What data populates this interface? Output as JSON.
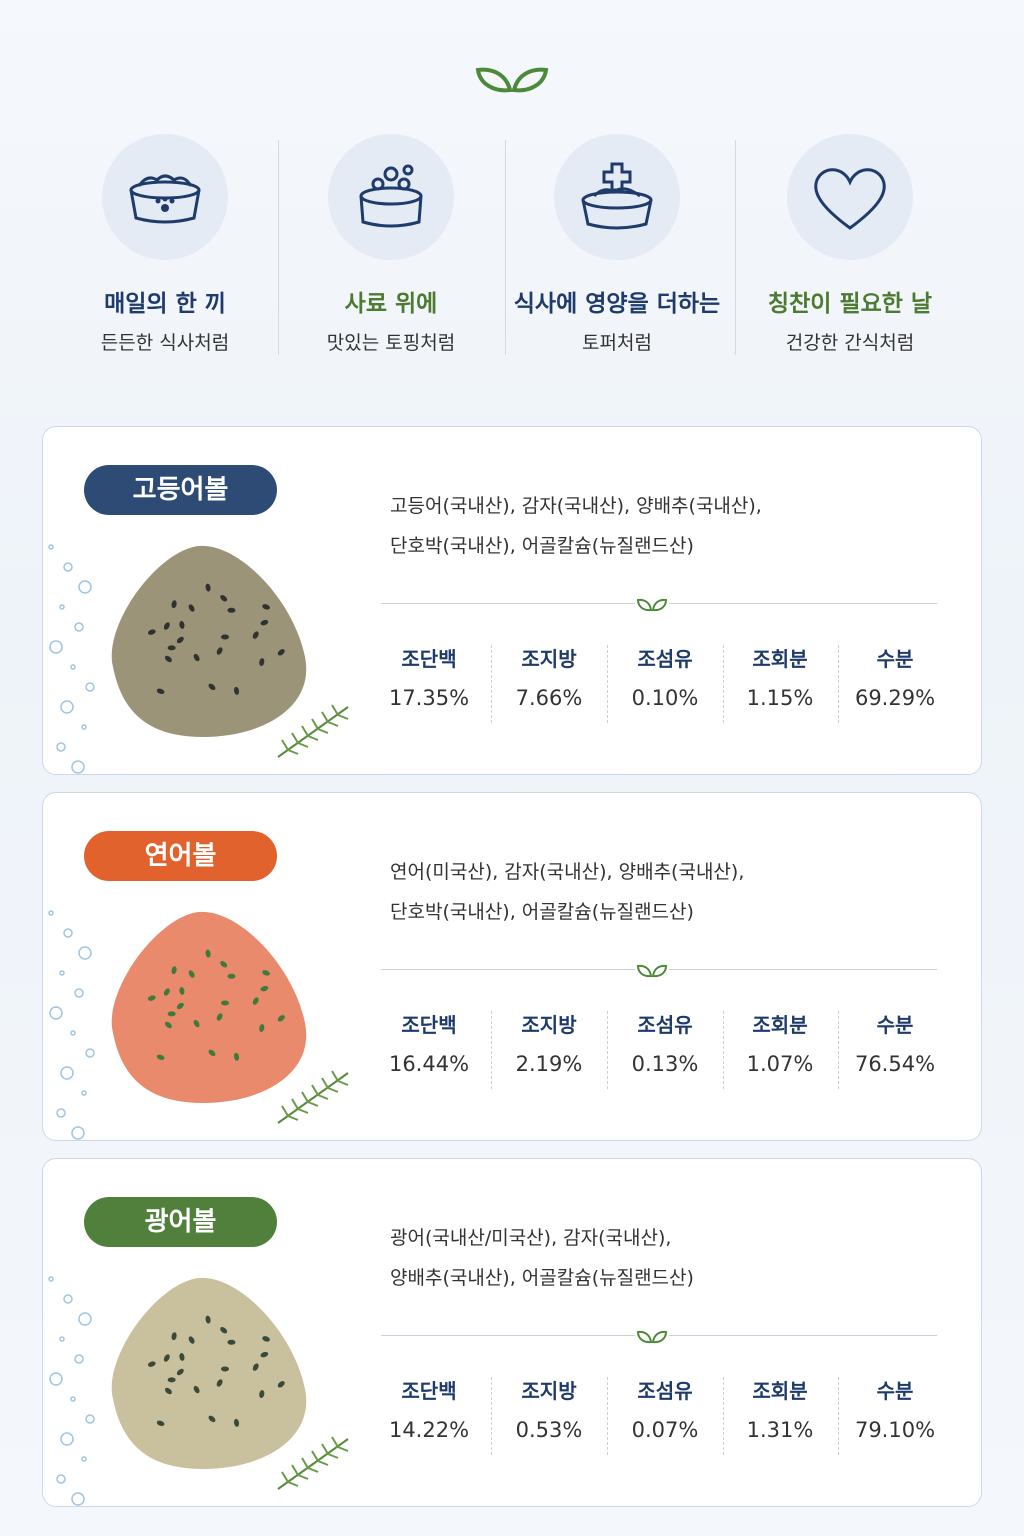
{
  "features": [
    {
      "title": "매일의 한 끼",
      "subtitle": "든든한 식사처럼"
    },
    {
      "title": "사료 위에",
      "subtitle": "맛있는 토핑처럼"
    },
    {
      "title": "식사에 영양을 더하는",
      "subtitle": "토퍼처럼"
    },
    {
      "title": "칭찬이 필요한 날",
      "subtitle": "건강한 간식처럼"
    }
  ],
  "products": [
    {
      "name": "고등어볼",
      "ingredients": [
        "고등어(국내산), 감자(국내산), 양배추(국내산),",
        "단호박(국내산), 어골칼슘(뉴질랜드산)"
      ],
      "nutrition": [
        {
          "label": "조단백",
          "value": "17.35%"
        },
        {
          "label": "조지방",
          "value": "7.66%"
        },
        {
          "label": "조섬유",
          "value": "0.10%"
        },
        {
          "label": "조회분",
          "value": "1.15%"
        },
        {
          "label": "수분",
          "value": "69.29%"
        }
      ]
    },
    {
      "name": "연어볼",
      "ingredients": [
        "연어(미국산), 감자(국내산), 양배추(국내산),",
        "단호박(국내산), 어골칼슘(뉴질랜드산)"
      ],
      "nutrition": [
        {
          "label": "조단백",
          "value": "16.44%"
        },
        {
          "label": "조지방",
          "value": "2.19%"
        },
        {
          "label": "조섬유",
          "value": "0.13%"
        },
        {
          "label": "조회분",
          "value": "1.07%"
        },
        {
          "label": "수분",
          "value": "76.54%"
        }
      ]
    },
    {
      "name": "광어볼",
      "ingredients": [
        "광어(국내산/미국산), 감자(국내산),",
        "양배추(국내산), 어골칼슘(뉴질랜드산)"
      ],
      "nutrition": [
        {
          "label": "조단백",
          "value": "14.22%"
        },
        {
          "label": "조지방",
          "value": "0.53%"
        },
        {
          "label": "조섬유",
          "value": "0.07%"
        },
        {
          "label": "조회분",
          "value": "1.31%"
        },
        {
          "label": "수분",
          "value": "79.10%"
        }
      ]
    }
  ]
}
